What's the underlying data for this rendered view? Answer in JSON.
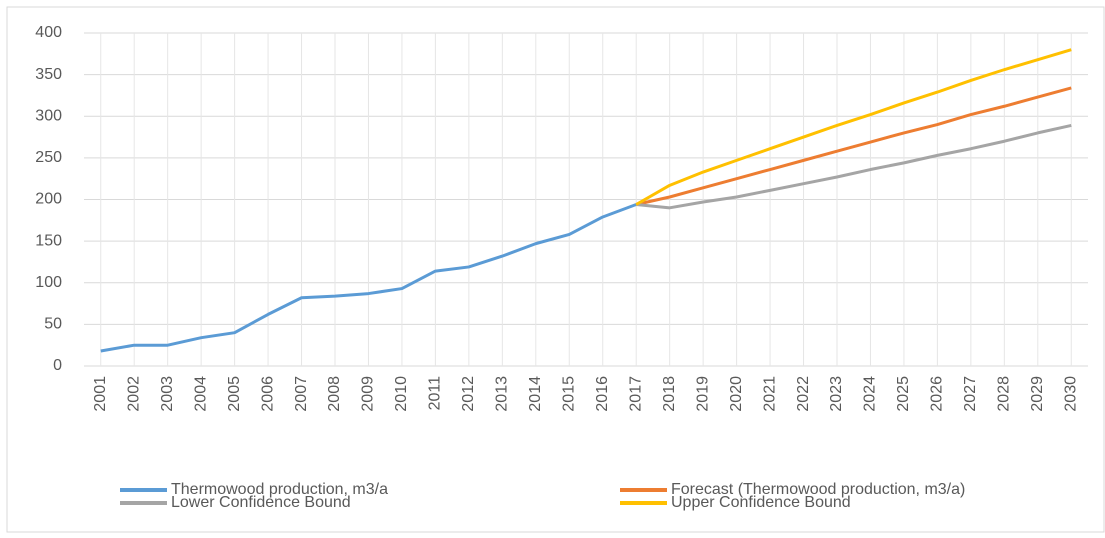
{
  "chart_data": {
    "type": "line",
    "categories": [
      "2001",
      "2002",
      "2003",
      "2004",
      "2005",
      "2006",
      "2007",
      "2008",
      "2009",
      "2010",
      "2011",
      "2012",
      "2013",
      "2014",
      "2015",
      "2016",
      "2017",
      "2018",
      "2019",
      "2020",
      "2021",
      "2022",
      "2023",
      "2024",
      "2025",
      "2026",
      "2027",
      "2028",
      "2029",
      "2030"
    ],
    "series": [
      {
        "name": "Thermowood production, m3/a",
        "color": "#5b9bd5",
        "values": [
          18,
          25,
          25,
          34,
          40,
          62,
          82,
          84,
          87,
          93,
          114,
          119,
          132,
          147,
          158,
          179,
          194,
          null,
          null,
          null,
          null,
          null,
          null,
          null,
          null,
          null,
          null,
          null,
          null,
          null
        ]
      },
      {
        "name": "Forecast (Thermowood production, m3/a)",
        "color": "#ed7d31",
        "values": [
          null,
          null,
          null,
          null,
          null,
          null,
          null,
          null,
          null,
          null,
          null,
          null,
          null,
          null,
          null,
          null,
          194,
          203,
          214,
          225,
          236,
          247,
          258,
          269,
          280,
          290,
          302,
          312,
          323,
          334
        ]
      },
      {
        "name": "Lower Confidence Bound",
        "color": "#a5a5a5",
        "values": [
          null,
          null,
          null,
          null,
          null,
          null,
          null,
          null,
          null,
          null,
          null,
          null,
          null,
          null,
          null,
          null,
          194,
          190,
          197,
          203,
          211,
          219,
          227,
          236,
          244,
          253,
          261,
          270,
          280,
          289
        ]
      },
      {
        "name": "Upper Confidence Bound",
        "color": "#ffc000",
        "values": [
          null,
          null,
          null,
          null,
          null,
          null,
          null,
          null,
          null,
          null,
          null,
          null,
          null,
          null,
          null,
          null,
          194,
          217,
          233,
          247,
          261,
          275,
          289,
          302,
          316,
          329,
          343,
          356,
          368,
          380
        ]
      }
    ],
    "ylim": [
      0,
      400
    ],
    "yticks": [
      0,
      50,
      100,
      150,
      200,
      250,
      300,
      350,
      400
    ],
    "grid": true,
    "xgrid": true,
    "legend": "bottom"
  }
}
